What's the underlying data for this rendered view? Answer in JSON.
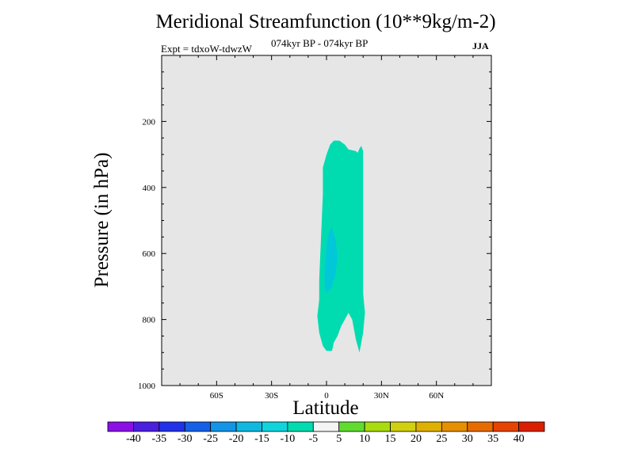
{
  "chart_data": {
    "type": "heatmap",
    "title": "Meridional Streamfunction (10**9kg/m-2)",
    "left_subtitle": "Expt = tdxoW-tdwzW",
    "center_subtitle": "074kyr BP - 074kyr BP",
    "right_subtitle": "JJA",
    "xlabel": "Latitude",
    "ylabel": "Pressure (in hPa)",
    "xlim": [
      -90,
      90
    ],
    "ylim": [
      1000,
      0
    ],
    "x_ticks": [
      {
        "value": -60,
        "label": "60S"
      },
      {
        "value": -30,
        "label": "30S"
      },
      {
        "value": 0,
        "label": "0"
      },
      {
        "value": 30,
        "label": "30N"
      },
      {
        "value": 60,
        "label": "60N"
      }
    ],
    "y_ticks": [
      {
        "value": 200,
        "label": "200"
      },
      {
        "value": 400,
        "label": "400"
      },
      {
        "value": 600,
        "label": "600"
      },
      {
        "value": 800,
        "label": "800"
      },
      {
        "value": 1000,
        "label": "1000"
      }
    ],
    "background_color": "#e6e6e6",
    "regions": [
      {
        "level": "-10 to -5",
        "color": "#00dcb0",
        "polygon": [
          [
            4,
            258
          ],
          [
            7,
            258
          ],
          [
            10,
            270
          ],
          [
            12,
            285
          ],
          [
            16,
            290
          ],
          [
            17,
            295
          ],
          [
            18,
            282
          ],
          [
            19,
            274
          ],
          [
            20,
            290
          ],
          [
            20,
            560
          ],
          [
            20,
            660
          ],
          [
            20,
            720
          ],
          [
            21,
            780
          ],
          [
            20,
            840
          ],
          [
            18,
            900
          ],
          [
            16,
            860
          ],
          [
            14,
            800
          ],
          [
            12,
            780
          ],
          [
            10,
            800
          ],
          [
            8,
            820
          ],
          [
            6,
            850
          ],
          [
            4,
            870
          ],
          [
            3,
            895
          ],
          [
            0,
            895
          ],
          [
            -2,
            880
          ],
          [
            -4,
            840
          ],
          [
            -5,
            790
          ],
          [
            -4,
            740
          ],
          [
            -4,
            680
          ],
          [
            -3,
            550
          ],
          [
            -2,
            420
          ],
          [
            -2,
            340
          ],
          [
            0,
            300
          ],
          [
            2,
            270
          ]
        ]
      },
      {
        "level": "-15 to -10",
        "color": "#00c8d8",
        "polygon": [
          [
            3,
            520
          ],
          [
            5,
            560
          ],
          [
            6,
            610
          ],
          [
            5,
            660
          ],
          [
            3,
            700
          ],
          [
            0,
            720
          ],
          [
            -1,
            700
          ],
          [
            -1,
            640
          ],
          [
            0,
            580
          ],
          [
            1,
            540
          ]
        ]
      }
    ],
    "colorbar": {
      "labels": [
        "-40",
        "-35",
        "-30",
        "-25",
        "-20",
        "-15",
        "-10",
        "-5",
        "5",
        "10",
        "15",
        "20",
        "25",
        "30",
        "35",
        "40"
      ],
      "colors": [
        "#8a10e6",
        "#4b1ee0",
        "#2132e8",
        "#1560e6",
        "#1494e6",
        "#10b8e0",
        "#10d4dc",
        "#00dcb0",
        "#f4f4f4",
        "#60dc30",
        "#a8dc10",
        "#d0d010",
        "#e0b000",
        "#e69000",
        "#e66c00",
        "#e64400",
        "#dc1e00"
      ]
    }
  }
}
